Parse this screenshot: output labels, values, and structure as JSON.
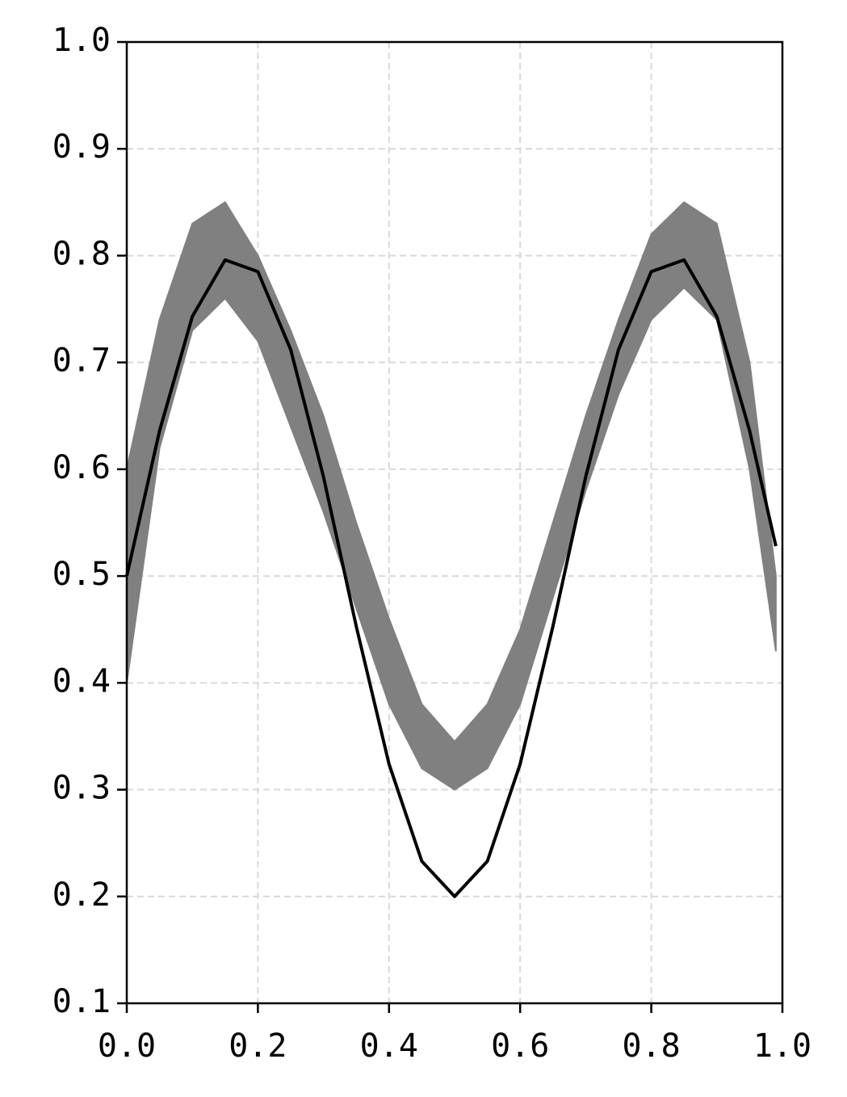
{
  "chart_data": {
    "type": "line",
    "x": [
      0,
      0.05,
      0.1,
      0.15,
      0.2,
      0.25,
      0.3,
      0.35,
      0.4,
      0.45,
      0.5,
      0.55,
      0.6,
      0.65,
      0.7,
      0.75,
      0.8,
      0.85,
      0.9,
      0.95,
      0.99
    ],
    "bands": [
      {
        "color": "#808080",
        "lower": [
          0.4,
          0.62,
          0.73,
          0.76,
          0.72,
          0.64,
          0.56,
          0.47,
          0.38,
          0.32,
          0.3,
          0.32,
          0.38,
          0.48,
          0.58,
          0.67,
          0.74,
          0.77,
          0.74,
          0.6,
          0.43
        ],
        "upper": [
          0.6,
          0.74,
          0.83,
          0.85,
          0.8,
          0.73,
          0.65,
          0.55,
          0.46,
          0.38,
          0.345,
          0.38,
          0.45,
          0.55,
          0.65,
          0.74,
          0.82,
          0.85,
          0.83,
          0.7,
          0.5
        ]
      }
    ],
    "series": [
      {
        "color": "#000000",
        "values": [
          0.5,
          0.636,
          0.743,
          0.796,
          0.785,
          0.712,
          0.593,
          0.453,
          0.324,
          0.233,
          0.2,
          0.233,
          0.324,
          0.453,
          0.593,
          0.712,
          0.785,
          0.796,
          0.743,
          0.636,
          0.528
        ]
      }
    ],
    "xlim": [
      0,
      1
    ],
    "xticks": [
      {
        "value": 0,
        "label": "0.0"
      },
      0.2,
      0.4,
      0.6,
      0.8,
      {
        "value": 1,
        "label": "1.0"
      }
    ],
    "ylim": [
      0.1,
      1
    ],
    "yticks": [
      0.1,
      0.2,
      0.3,
      0.4,
      0.5,
      0.6,
      0.7,
      0.8,
      0.9,
      {
        "value": 1,
        "label": "1.0"
      }
    ],
    "grid": true
  }
}
